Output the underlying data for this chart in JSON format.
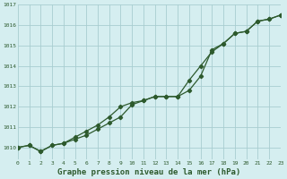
{
  "title": "Graphe pression niveau de la mer (hPa)",
  "background_color": "#d5eef0",
  "grid_color": "#a8cdd0",
  "line_color": "#2d5a2d",
  "x_labels": [
    "0",
    "1",
    "2",
    "3",
    "4",
    "5",
    "6",
    "7",
    "8",
    "9",
    "10",
    "11",
    "12",
    "13",
    "14",
    "15",
    "16",
    "17",
    "18",
    "19",
    "20",
    "21",
    "22",
    "23"
  ],
  "xlim": [
    0,
    23
  ],
  "ylim": [
    1009.4,
    1017.0
  ],
  "yticks": [
    1010,
    1011,
    1012,
    1013,
    1014,
    1015,
    1016,
    1017
  ],
  "series1": [
    1010.0,
    1010.1,
    1009.8,
    1010.1,
    1010.2,
    1010.4,
    1010.6,
    1010.9,
    1011.2,
    1011.5,
    1012.1,
    1012.3,
    1012.5,
    1012.5,
    1012.5,
    1013.3,
    1014.0,
    1014.7,
    1015.1,
    1015.6,
    1015.7,
    1016.2,
    1016.3,
    1016.5
  ],
  "series2": [
    1010.0,
    1010.1,
    1009.8,
    1010.1,
    1010.2,
    1010.5,
    1010.8,
    1011.1,
    1011.5,
    1012.0,
    1012.2,
    1012.3,
    1012.5,
    1012.5,
    1012.5,
    1012.8,
    1013.5,
    1014.8,
    1015.1,
    1015.6,
    1015.7,
    1016.2,
    1016.3,
    1016.5
  ]
}
